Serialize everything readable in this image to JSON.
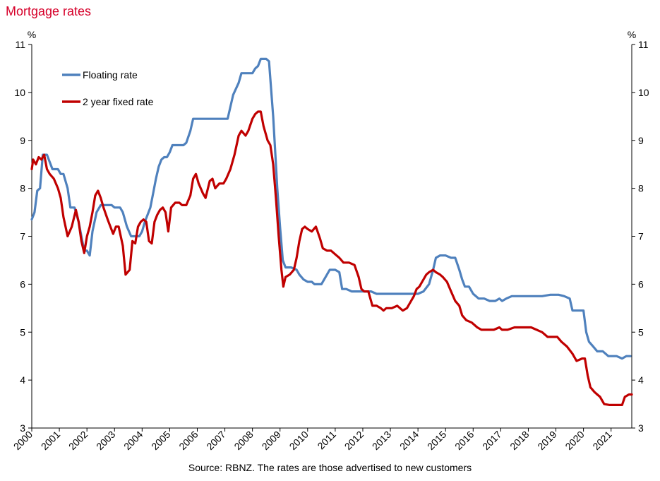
{
  "header": {
    "title": "Mortgage rates"
  },
  "footer": {
    "source": "Source: RBNZ. The rates are those advertised to new customers"
  },
  "chart_data": {
    "type": "line",
    "title": "Mortgage rates",
    "xlabel": "",
    "ylabel_left": "%",
    "ylabel_right": "%",
    "xlim": [
      2000,
      2021.75
    ],
    "ylim": [
      3,
      11
    ],
    "yticks": [
      3,
      4,
      5,
      6,
      7,
      8,
      9,
      10,
      11
    ],
    "xticks": [
      "2000",
      "2001",
      "2002",
      "2003",
      "2004",
      "2005",
      "2006",
      "2007",
      "2008",
      "2009",
      "2010",
      "2011",
      "2012",
      "2013",
      "2014",
      "2015",
      "2016",
      "2017",
      "2018",
      "2019",
      "2020",
      "2021"
    ],
    "legend_position": "top-left",
    "grid": false,
    "series": [
      {
        "name": "Floating rate",
        "color": "#4f81bd",
        "points": [
          [
            2000.0,
            7.35
          ],
          [
            2000.1,
            7.5
          ],
          [
            2000.2,
            7.95
          ],
          [
            2000.3,
            8.0
          ],
          [
            2000.4,
            8.7
          ],
          [
            2000.55,
            8.7
          ],
          [
            2000.65,
            8.55
          ],
          [
            2000.75,
            8.4
          ],
          [
            2000.95,
            8.4
          ],
          [
            2001.05,
            8.3
          ],
          [
            2001.15,
            8.3
          ],
          [
            2001.3,
            8.0
          ],
          [
            2001.4,
            7.6
          ],
          [
            2001.55,
            7.6
          ],
          [
            2001.7,
            7.3
          ],
          [
            2001.8,
            7.0
          ],
          [
            2001.9,
            6.7
          ],
          [
            2002.0,
            6.7
          ],
          [
            2002.1,
            6.6
          ],
          [
            2002.2,
            7.1
          ],
          [
            2002.35,
            7.5
          ],
          [
            2002.5,
            7.65
          ],
          [
            2002.7,
            7.65
          ],
          [
            2002.9,
            7.65
          ],
          [
            2003.0,
            7.6
          ],
          [
            2003.2,
            7.6
          ],
          [
            2003.3,
            7.5
          ],
          [
            2003.45,
            7.2
          ],
          [
            2003.6,
            7.0
          ],
          [
            2003.75,
            7.0
          ],
          [
            2003.9,
            7.0
          ],
          [
            2004.0,
            7.1
          ],
          [
            2004.1,
            7.3
          ],
          [
            2004.2,
            7.45
          ],
          [
            2004.3,
            7.6
          ],
          [
            2004.4,
            7.9
          ],
          [
            2004.5,
            8.2
          ],
          [
            2004.6,
            8.45
          ],
          [
            2004.7,
            8.6
          ],
          [
            2004.8,
            8.65
          ],
          [
            2004.9,
            8.65
          ],
          [
            2005.0,
            8.75
          ],
          [
            2005.1,
            8.9
          ],
          [
            2005.3,
            8.9
          ],
          [
            2005.5,
            8.9
          ],
          [
            2005.6,
            8.95
          ],
          [
            2005.75,
            9.2
          ],
          [
            2005.85,
            9.45
          ],
          [
            2006.0,
            9.45
          ],
          [
            2006.3,
            9.45
          ],
          [
            2006.6,
            9.45
          ],
          [
            2006.8,
            9.45
          ],
          [
            2007.0,
            9.45
          ],
          [
            2007.1,
            9.45
          ],
          [
            2007.2,
            9.7
          ],
          [
            2007.3,
            9.95
          ],
          [
            2007.5,
            10.2
          ],
          [
            2007.6,
            10.4
          ],
          [
            2007.8,
            10.4
          ],
          [
            2008.0,
            10.4
          ],
          [
            2008.1,
            10.5
          ],
          [
            2008.2,
            10.55
          ],
          [
            2008.3,
            10.7
          ],
          [
            2008.5,
            10.7
          ],
          [
            2008.6,
            10.65
          ],
          [
            2008.75,
            9.5
          ],
          [
            2008.85,
            8.5
          ],
          [
            2008.9,
            8.0
          ],
          [
            2009.0,
            7.2
          ],
          [
            2009.1,
            6.5
          ],
          [
            2009.2,
            6.35
          ],
          [
            2009.4,
            6.35
          ],
          [
            2009.6,
            6.3
          ],
          [
            2009.7,
            6.2
          ],
          [
            2009.85,
            6.1
          ],
          [
            2010.0,
            6.05
          ],
          [
            2010.15,
            6.05
          ],
          [
            2010.25,
            6.0
          ],
          [
            2010.5,
            6.0
          ],
          [
            2010.6,
            6.1
          ],
          [
            2010.8,
            6.3
          ],
          [
            2011.0,
            6.3
          ],
          [
            2011.15,
            6.25
          ],
          [
            2011.25,
            5.9
          ],
          [
            2011.4,
            5.9
          ],
          [
            2011.6,
            5.85
          ],
          [
            2011.9,
            5.85
          ],
          [
            2012.1,
            5.85
          ],
          [
            2012.3,
            5.85
          ],
          [
            2012.5,
            5.8
          ],
          [
            2012.8,
            5.8
          ],
          [
            2013.0,
            5.8
          ],
          [
            2013.2,
            5.8
          ],
          [
            2013.5,
            5.8
          ],
          [
            2013.8,
            5.8
          ],
          [
            2014.0,
            5.8
          ],
          [
            2014.2,
            5.85
          ],
          [
            2014.4,
            6.0
          ],
          [
            2014.55,
            6.3
          ],
          [
            2014.65,
            6.55
          ],
          [
            2014.8,
            6.6
          ],
          [
            2015.0,
            6.6
          ],
          [
            2015.2,
            6.55
          ],
          [
            2015.35,
            6.55
          ],
          [
            2015.5,
            6.3
          ],
          [
            2015.6,
            6.1
          ],
          [
            2015.7,
            5.95
          ],
          [
            2015.85,
            5.95
          ],
          [
            2016.0,
            5.8
          ],
          [
            2016.2,
            5.7
          ],
          [
            2016.4,
            5.7
          ],
          [
            2016.6,
            5.65
          ],
          [
            2016.8,
            5.65
          ],
          [
            2016.95,
            5.7
          ],
          [
            2017.05,
            5.65
          ],
          [
            2017.2,
            5.7
          ],
          [
            2017.4,
            5.75
          ],
          [
            2017.7,
            5.75
          ],
          [
            2018.0,
            5.75
          ],
          [
            2018.3,
            5.75
          ],
          [
            2018.5,
            5.75
          ],
          [
            2018.8,
            5.78
          ],
          [
            2019.1,
            5.78
          ],
          [
            2019.3,
            5.75
          ],
          [
            2019.5,
            5.7
          ],
          [
            2019.6,
            5.45
          ],
          [
            2019.8,
            5.45
          ],
          [
            2020.0,
            5.45
          ],
          [
            2020.1,
            5.0
          ],
          [
            2020.2,
            4.8
          ],
          [
            2020.35,
            4.7
          ],
          [
            2020.5,
            4.6
          ],
          [
            2020.7,
            4.6
          ],
          [
            2020.9,
            4.5
          ],
          [
            2021.2,
            4.5
          ],
          [
            2021.4,
            4.45
          ],
          [
            2021.55,
            4.5
          ],
          [
            2021.7,
            4.5
          ]
        ]
      },
      {
        "name": "2 year fixed rate",
        "color": "#c00000",
        "points": [
          [
            2000.0,
            8.4
          ],
          [
            2000.05,
            8.6
          ],
          [
            2000.15,
            8.5
          ],
          [
            2000.25,
            8.65
          ],
          [
            2000.35,
            8.6
          ],
          [
            2000.45,
            8.7
          ],
          [
            2000.55,
            8.4
          ],
          [
            2000.65,
            8.3
          ],
          [
            2000.8,
            8.2
          ],
          [
            2000.95,
            8.0
          ],
          [
            2001.05,
            7.8
          ],
          [
            2001.15,
            7.4
          ],
          [
            2001.3,
            7.0
          ],
          [
            2001.45,
            7.2
          ],
          [
            2001.6,
            7.55
          ],
          [
            2001.7,
            7.3
          ],
          [
            2001.8,
            6.9
          ],
          [
            2001.9,
            6.65
          ],
          [
            2002.0,
            7.0
          ],
          [
            2002.1,
            7.2
          ],
          [
            2002.2,
            7.5
          ],
          [
            2002.3,
            7.85
          ],
          [
            2002.4,
            7.95
          ],
          [
            2002.5,
            7.8
          ],
          [
            2002.6,
            7.6
          ],
          [
            2002.75,
            7.35
          ],
          [
            2002.85,
            7.2
          ],
          [
            2002.95,
            7.05
          ],
          [
            2003.05,
            7.2
          ],
          [
            2003.15,
            7.2
          ],
          [
            2003.3,
            6.8
          ],
          [
            2003.4,
            6.2
          ],
          [
            2003.55,
            6.3
          ],
          [
            2003.65,
            6.9
          ],
          [
            2003.75,
            6.85
          ],
          [
            2003.85,
            7.2
          ],
          [
            2003.95,
            7.3
          ],
          [
            2004.05,
            7.35
          ],
          [
            2004.15,
            7.3
          ],
          [
            2004.25,
            6.9
          ],
          [
            2004.35,
            6.85
          ],
          [
            2004.45,
            7.3
          ],
          [
            2004.55,
            7.45
          ],
          [
            2004.65,
            7.55
          ],
          [
            2004.75,
            7.6
          ],
          [
            2004.85,
            7.5
          ],
          [
            2004.95,
            7.1
          ],
          [
            2005.05,
            7.6
          ],
          [
            2005.2,
            7.7
          ],
          [
            2005.35,
            7.7
          ],
          [
            2005.45,
            7.65
          ],
          [
            2005.6,
            7.65
          ],
          [
            2005.75,
            7.85
          ],
          [
            2005.85,
            8.2
          ],
          [
            2005.95,
            8.3
          ],
          [
            2006.05,
            8.1
          ],
          [
            2006.2,
            7.9
          ],
          [
            2006.3,
            7.8
          ],
          [
            2006.45,
            8.15
          ],
          [
            2006.55,
            8.2
          ],
          [
            2006.65,
            8.0
          ],
          [
            2006.8,
            8.1
          ],
          [
            2006.95,
            8.1
          ],
          [
            2007.05,
            8.2
          ],
          [
            2007.2,
            8.4
          ],
          [
            2007.35,
            8.7
          ],
          [
            2007.5,
            9.1
          ],
          [
            2007.6,
            9.2
          ],
          [
            2007.75,
            9.1
          ],
          [
            2007.85,
            9.2
          ],
          [
            2008.0,
            9.45
          ],
          [
            2008.1,
            9.55
          ],
          [
            2008.2,
            9.6
          ],
          [
            2008.3,
            9.6
          ],
          [
            2008.4,
            9.3
          ],
          [
            2008.55,
            9.0
          ],
          [
            2008.65,
            8.9
          ],
          [
            2008.75,
            8.5
          ],
          [
            2008.85,
            7.8
          ],
          [
            2008.95,
            7.0
          ],
          [
            2009.05,
            6.3
          ],
          [
            2009.12,
            5.95
          ],
          [
            2009.2,
            6.15
          ],
          [
            2009.35,
            6.2
          ],
          [
            2009.5,
            6.3
          ],
          [
            2009.6,
            6.55
          ],
          [
            2009.7,
            6.9
          ],
          [
            2009.8,
            7.15
          ],
          [
            2009.9,
            7.2
          ],
          [
            2010.0,
            7.15
          ],
          [
            2010.15,
            7.1
          ],
          [
            2010.3,
            7.2
          ],
          [
            2010.45,
            6.95
          ],
          [
            2010.55,
            6.75
          ],
          [
            2010.7,
            6.7
          ],
          [
            2010.85,
            6.7
          ],
          [
            2011.05,
            6.6
          ],
          [
            2011.15,
            6.55
          ],
          [
            2011.3,
            6.45
          ],
          [
            2011.5,
            6.45
          ],
          [
            2011.7,
            6.4
          ],
          [
            2011.85,
            6.15
          ],
          [
            2011.95,
            5.9
          ],
          [
            2012.05,
            5.85
          ],
          [
            2012.2,
            5.85
          ],
          [
            2012.35,
            5.55
          ],
          [
            2012.5,
            5.55
          ],
          [
            2012.65,
            5.5
          ],
          [
            2012.75,
            5.45
          ],
          [
            2012.85,
            5.5
          ],
          [
            2013.05,
            5.5
          ],
          [
            2013.25,
            5.55
          ],
          [
            2013.45,
            5.45
          ],
          [
            2013.6,
            5.5
          ],
          [
            2013.7,
            5.6
          ],
          [
            2013.85,
            5.75
          ],
          [
            2013.95,
            5.9
          ],
          [
            2014.05,
            5.95
          ],
          [
            2014.15,
            6.05
          ],
          [
            2014.3,
            6.2
          ],
          [
            2014.4,
            6.25
          ],
          [
            2014.55,
            6.3
          ],
          [
            2014.65,
            6.25
          ],
          [
            2014.8,
            6.2
          ],
          [
            2014.9,
            6.15
          ],
          [
            2015.05,
            6.05
          ],
          [
            2015.2,
            5.85
          ],
          [
            2015.35,
            5.65
          ],
          [
            2015.5,
            5.55
          ],
          [
            2015.6,
            5.35
          ],
          [
            2015.75,
            5.25
          ],
          [
            2015.95,
            5.2
          ],
          [
            2016.15,
            5.1
          ],
          [
            2016.3,
            5.05
          ],
          [
            2016.5,
            5.05
          ],
          [
            2016.75,
            5.05
          ],
          [
            2016.95,
            5.1
          ],
          [
            2017.05,
            5.05
          ],
          [
            2017.25,
            5.05
          ],
          [
            2017.5,
            5.1
          ],
          [
            2017.7,
            5.1
          ],
          [
            2017.9,
            5.1
          ],
          [
            2018.1,
            5.1
          ],
          [
            2018.3,
            5.05
          ],
          [
            2018.5,
            5.0
          ],
          [
            2018.7,
            4.9
          ],
          [
            2018.9,
            4.9
          ],
          [
            2019.05,
            4.9
          ],
          [
            2019.2,
            4.8
          ],
          [
            2019.4,
            4.7
          ],
          [
            2019.6,
            4.55
          ],
          [
            2019.75,
            4.4
          ],
          [
            2019.95,
            4.45
          ],
          [
            2020.05,
            4.45
          ],
          [
            2020.15,
            4.1
          ],
          [
            2020.25,
            3.85
          ],
          [
            2020.4,
            3.75
          ],
          [
            2020.5,
            3.7
          ],
          [
            2020.6,
            3.65
          ],
          [
            2020.75,
            3.5
          ],
          [
            2020.95,
            3.48
          ],
          [
            2021.15,
            3.48
          ],
          [
            2021.4,
            3.48
          ],
          [
            2021.5,
            3.65
          ],
          [
            2021.65,
            3.7
          ],
          [
            2021.75,
            3.7
          ]
        ]
      }
    ]
  }
}
